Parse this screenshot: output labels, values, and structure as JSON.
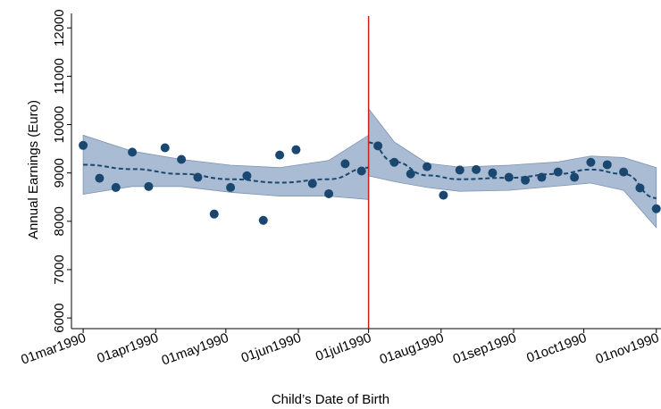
{
  "chart_data": {
    "type": "scatter",
    "xlabel": "Child’s Date of Birth",
    "ylabel": "Annual Earnings (Euro)",
    "xlim": [
      "1990-02-24",
      "1990-11-03"
    ],
    "xticks": [
      {
        "value": "1990-03-01",
        "label": "01mar1990"
      },
      {
        "value": "1990-04-01",
        "label": "01apr1990"
      },
      {
        "value": "1990-05-01",
        "label": "01may1990"
      },
      {
        "value": "1990-06-01",
        "label": "01jun1990"
      },
      {
        "value": "1990-07-01",
        "label": "01jul1990"
      },
      {
        "value": "1990-08-01",
        "label": "01aug1990"
      },
      {
        "value": "1990-09-01",
        "label": "01sep1990"
      },
      {
        "value": "1990-10-01",
        "label": "01oct1990"
      },
      {
        "value": "1990-11-01",
        "label": "01nov1990"
      }
    ],
    "ylim": [
      5780,
      12300
    ],
    "yticks": [
      6000,
      7000,
      8000,
      9000,
      10000,
      11000,
      12000
    ],
    "cutoff": "1990-07-01",
    "cutoff_color": "#cc1f1f",
    "points": {
      "color": "#1a476f",
      "x": [
        "1990-03-01",
        "1990-03-08",
        "1990-03-15",
        "1990-03-22",
        "1990-03-29",
        "1990-04-05",
        "1990-04-12",
        "1990-04-19",
        "1990-04-26",
        "1990-05-03",
        "1990-05-10",
        "1990-05-17",
        "1990-05-24",
        "1990-05-31",
        "1990-06-07",
        "1990-06-14",
        "1990-06-21",
        "1990-06-28",
        "1990-07-05",
        "1990-07-12",
        "1990-07-19",
        "1990-07-26",
        "1990-08-02",
        "1990-08-09",
        "1990-08-16",
        "1990-08-23",
        "1990-08-30",
        "1990-09-06",
        "1990-09-13",
        "1990-09-20",
        "1990-09-27",
        "1990-10-04",
        "1990-10-11",
        "1990-10-18",
        "1990-10-25",
        "1990-11-01"
      ],
      "values": [
        9570,
        8890,
        8700,
        9430,
        8720,
        9520,
        9280,
        8910,
        8150,
        8700,
        8940,
        8020,
        9370,
        9480,
        8780,
        8570,
        9190,
        9040,
        9560,
        9220,
        8980,
        9130,
        8540,
        9060,
        9070,
        9000,
        8910,
        8850,
        8910,
        9020,
        8910,
        9220,
        9170,
        9020,
        8690,
        8260
      ]
    },
    "fit_color": "#1a476f",
    "band_color": "#8ea5c4",
    "fits": [
      {
        "x": [
          "1990-03-01",
          "1990-03-22",
          "1990-04-12",
          "1990-05-03",
          "1990-05-24",
          "1990-06-14",
          "1990-07-01"
        ],
        "values": [
          9170,
          9080,
          8980,
          8870,
          8800,
          8870,
          9110
        ],
        "upper": [
          9780,
          9450,
          9280,
          9160,
          9110,
          9260,
          9780
        ],
        "lower": [
          8560,
          8720,
          8720,
          8600,
          8520,
          8520,
          8450
        ]
      },
      {
        "x": [
          "1990-07-01",
          "1990-07-12",
          "1990-07-26",
          "1990-08-09",
          "1990-08-30",
          "1990-09-20",
          "1990-10-04",
          "1990-10-18",
          "1990-11-01"
        ],
        "values": [
          9630,
          9230,
          8950,
          8870,
          8900,
          8980,
          9070,
          8980,
          8480
        ],
        "upper": [
          10330,
          9640,
          9200,
          9120,
          9160,
          9230,
          9350,
          9320,
          9110
        ],
        "lower": [
          8940,
          8820,
          8700,
          8620,
          8640,
          8730,
          8790,
          8640,
          7870
        ]
      }
    ]
  }
}
